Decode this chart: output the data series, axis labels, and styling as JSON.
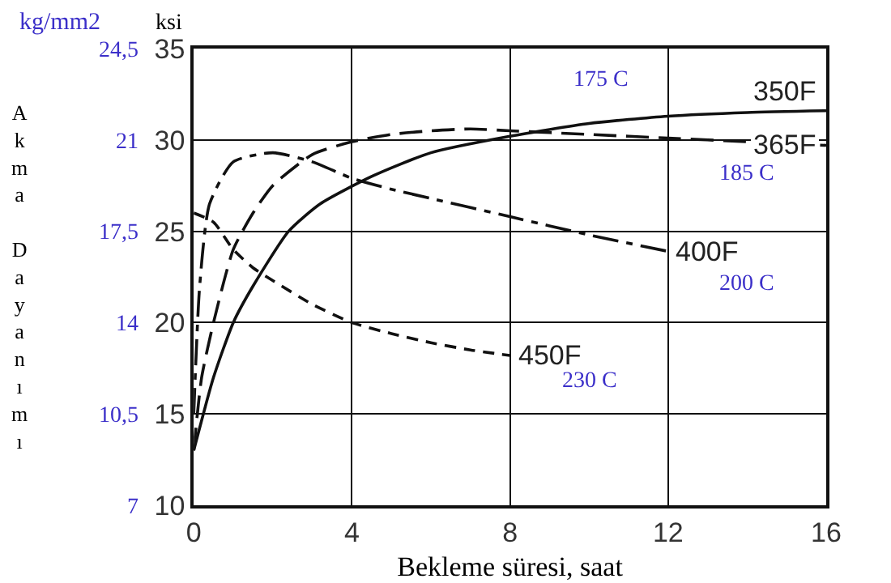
{
  "chart_data": {
    "type": "line",
    "xlabel": "Bekleme süresi, saat",
    "ylabel": "Akma Dayanımı",
    "y2label": "kg/mm2",
    "xlim": [
      0,
      16
    ],
    "xticks": [
      0,
      4,
      8,
      12,
      16
    ],
    "ylim": [
      10,
      35
    ],
    "yticks": [
      10,
      15,
      20,
      25,
      30,
      35
    ],
    "y2lim": [
      7,
      24.5
    ],
    "y2ticks": [
      7,
      {
        "value": 10.5,
        "label": "10,5"
      },
      14,
      {
        "value": 17.5,
        "label": "17,5"
      },
      21,
      {
        "value": 24.5,
        "label": "24,5"
      }
    ],
    "grid": true,
    "legend": false,
    "marker": "none",
    "series": [
      {
        "name": "350F",
        "color": "#111111",
        "line_style": "solid",
        "x": [
          0,
          0.5,
          1,
          1.5,
          2.4,
          3.2,
          4.5,
          6,
          8,
          10,
          12,
          14,
          16
        ],
        "values": [
          13,
          17,
          20,
          22,
          25,
          26.5,
          28,
          29.3,
          30.2,
          30.9,
          31.3,
          31.5,
          31.6
        ]
      },
      {
        "name": "365F",
        "color": "#111111",
        "line_style": "dashed",
        "x": [
          0,
          0.2,
          0.5,
          1,
          1.5,
          2,
          3,
          4,
          5,
          6,
          7,
          8,
          10,
          12,
          14,
          16
        ],
        "values": [
          13,
          17,
          20,
          24,
          26,
          27.5,
          29.2,
          29.9,
          30.3,
          30.5,
          30.6,
          30.5,
          30.3,
          30.1,
          29.9,
          29.7
        ]
      },
      {
        "name": "400F",
        "color": "#111111",
        "line_style": "dashdot",
        "x": [
          0,
          0.15,
          0.4,
          1,
          2,
          3,
          4,
          5,
          6,
          8,
          10,
          12
        ],
        "values": [
          15,
          22,
          26.5,
          28.8,
          29.3,
          28.8,
          27.9,
          27.3,
          26.8,
          25.8,
          24.8,
          23.9
        ]
      },
      {
        "name": "450F",
        "color": "#111111",
        "line_style": "dotted",
        "x": [
          0,
          0.5,
          1,
          1.5,
          2,
          3,
          4,
          5,
          6,
          7,
          8
        ],
        "values": [
          26,
          25.5,
          24,
          23,
          22.3,
          21,
          20,
          19.4,
          18.9,
          18.5,
          18.2
        ]
      }
    ],
    "annotations": [
      "ksi",
      {
        "text": "175 C",
        "x": 10.3,
        "y": 33.3
      },
      {
        "text": "185 C",
        "x": 14,
        "y": 28.1
      },
      {
        "text": "200 C",
        "x": 14,
        "y": 22.1
      },
      {
        "text": "230 C",
        "x": 10,
        "y": 16.8
      }
    ]
  }
}
